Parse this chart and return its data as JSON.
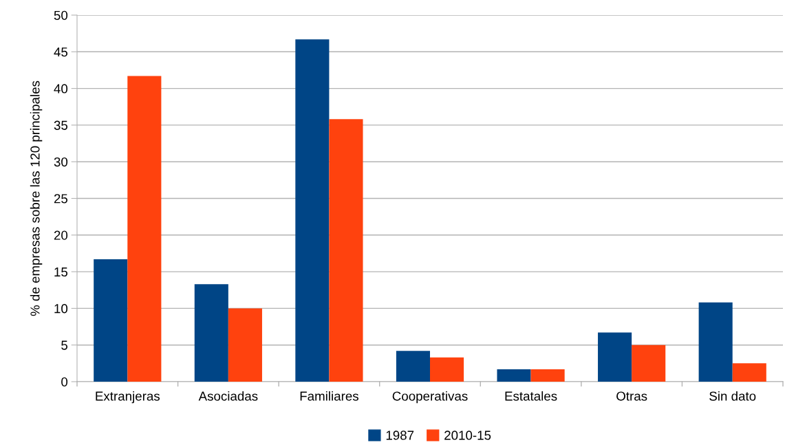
{
  "chart_data": {
    "type": "bar",
    "categories": [
      "Extranjeras",
      "Asociadas",
      "Familiares",
      "Cooperativas",
      "Estatales",
      "Otras",
      "Sin dato"
    ],
    "series": [
      {
        "name": "1987",
        "color": "#004586",
        "values": [
          16.7,
          13.3,
          46.7,
          4.2,
          1.7,
          6.7,
          10.8
        ]
      },
      {
        "name": "2010-15",
        "color": "#ff420e",
        "values": [
          41.7,
          10.0,
          35.8,
          3.3,
          1.7,
          5.0,
          2.5
        ]
      }
    ],
    "ylabel": "% de empresas sobre las 120 principales",
    "ylim": [
      0,
      50
    ],
    "yticks": [
      0,
      5,
      10,
      15,
      20,
      25,
      30,
      35,
      40,
      45,
      50
    ],
    "grid": "y",
    "legend": "bottom"
  }
}
